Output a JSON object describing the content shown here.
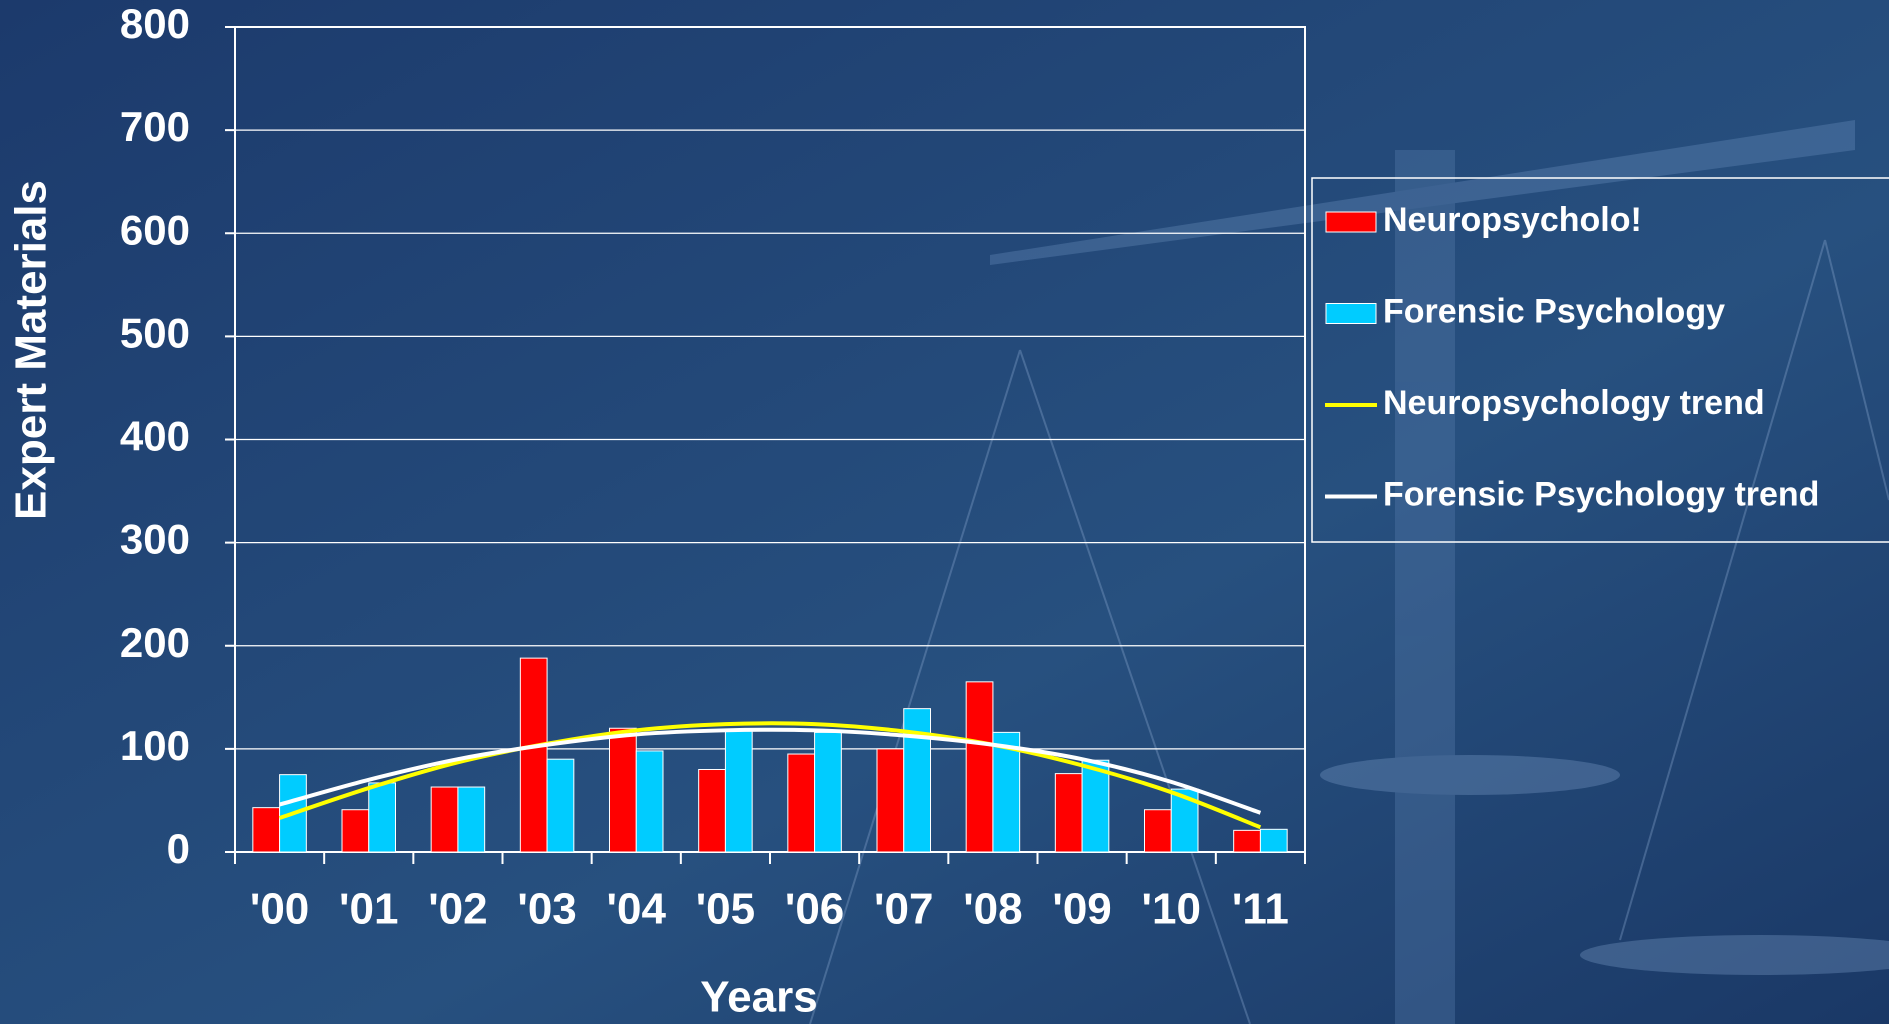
{
  "chart_data": {
    "type": "bar",
    "y_label": "Expert Materials",
    "x_label": "Years",
    "categories": [
      "'00",
      "'01",
      "'02",
      "'03",
      "'04",
      "'05",
      "'06",
      "'07",
      "'08",
      "'09",
      "'10",
      "'11"
    ],
    "series": [
      {
        "name": "Neuropsycholo!",
        "color": "#ff0000",
        "values": [
          43,
          41,
          63,
          188,
          120,
          80,
          95,
          100,
          165,
          76,
          41,
          21
        ]
      },
      {
        "name": "Forensic Psychology",
        "color": "#00ccff",
        "values": [
          75,
          67,
          63,
          90,
          98,
          119,
          116,
          139,
          116,
          89,
          61,
          22
        ]
      },
      {
        "name": "Neuropsychology trend",
        "type": "line",
        "color": "#ffff00",
        "values": [
          33,
          62,
          87,
          105,
          118,
          124,
          124,
          117,
          104,
          84,
          58,
          24
        ]
      },
      {
        "name": "Forensic Psychology trend",
        "type": "line",
        "color": "#ffffff",
        "values": [
          46,
          70,
          90,
          104,
          114,
          118,
          118,
          113,
          104,
          90,
          68,
          38
        ]
      }
    ],
    "ylim": [
      0,
      800
    ],
    "yticks": [
      0,
      100,
      200,
      300,
      400,
      500,
      600,
      700,
      800
    ],
    "grid": true,
    "legend": "right"
  }
}
